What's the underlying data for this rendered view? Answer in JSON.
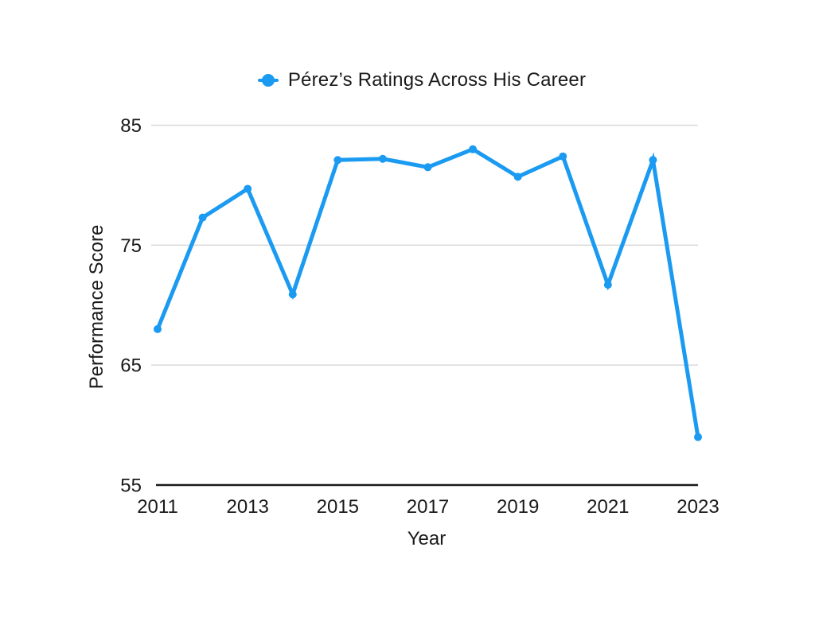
{
  "chart_data": {
    "type": "line",
    "title": "Pérez’s Ratings Across His Career",
    "xlabel": "Year",
    "ylabel": "Performance Score",
    "x": [
      2011,
      2012,
      2013,
      2014,
      2015,
      2016,
      2017,
      2018,
      2019,
      2020,
      2021,
      2022,
      2023
    ],
    "series": [
      {
        "name": "Pérez’s Ratings Across His Career",
        "values": [
          68,
          77.3,
          79.7,
          70.9,
          82.1,
          82.2,
          81.5,
          83,
          80.7,
          82.4,
          71.7,
          82.1,
          59
        ]
      }
    ],
    "x_tick_labels": [
      "2011",
      "2013",
      "2015",
      "2017",
      "2019",
      "2021",
      "2023"
    ],
    "y_ticks": [
      55,
      65,
      75,
      85
    ],
    "ylim": [
      55,
      85
    ],
    "grid": "horizontal-only",
    "legend_position": "top-center",
    "marker": "circle",
    "colors": {
      "line": "#1B9AF2",
      "grid": "#d9d9d9",
      "axis": "#1a1a1a",
      "text": "#1a1a1a",
      "background": "#ffffff"
    }
  }
}
